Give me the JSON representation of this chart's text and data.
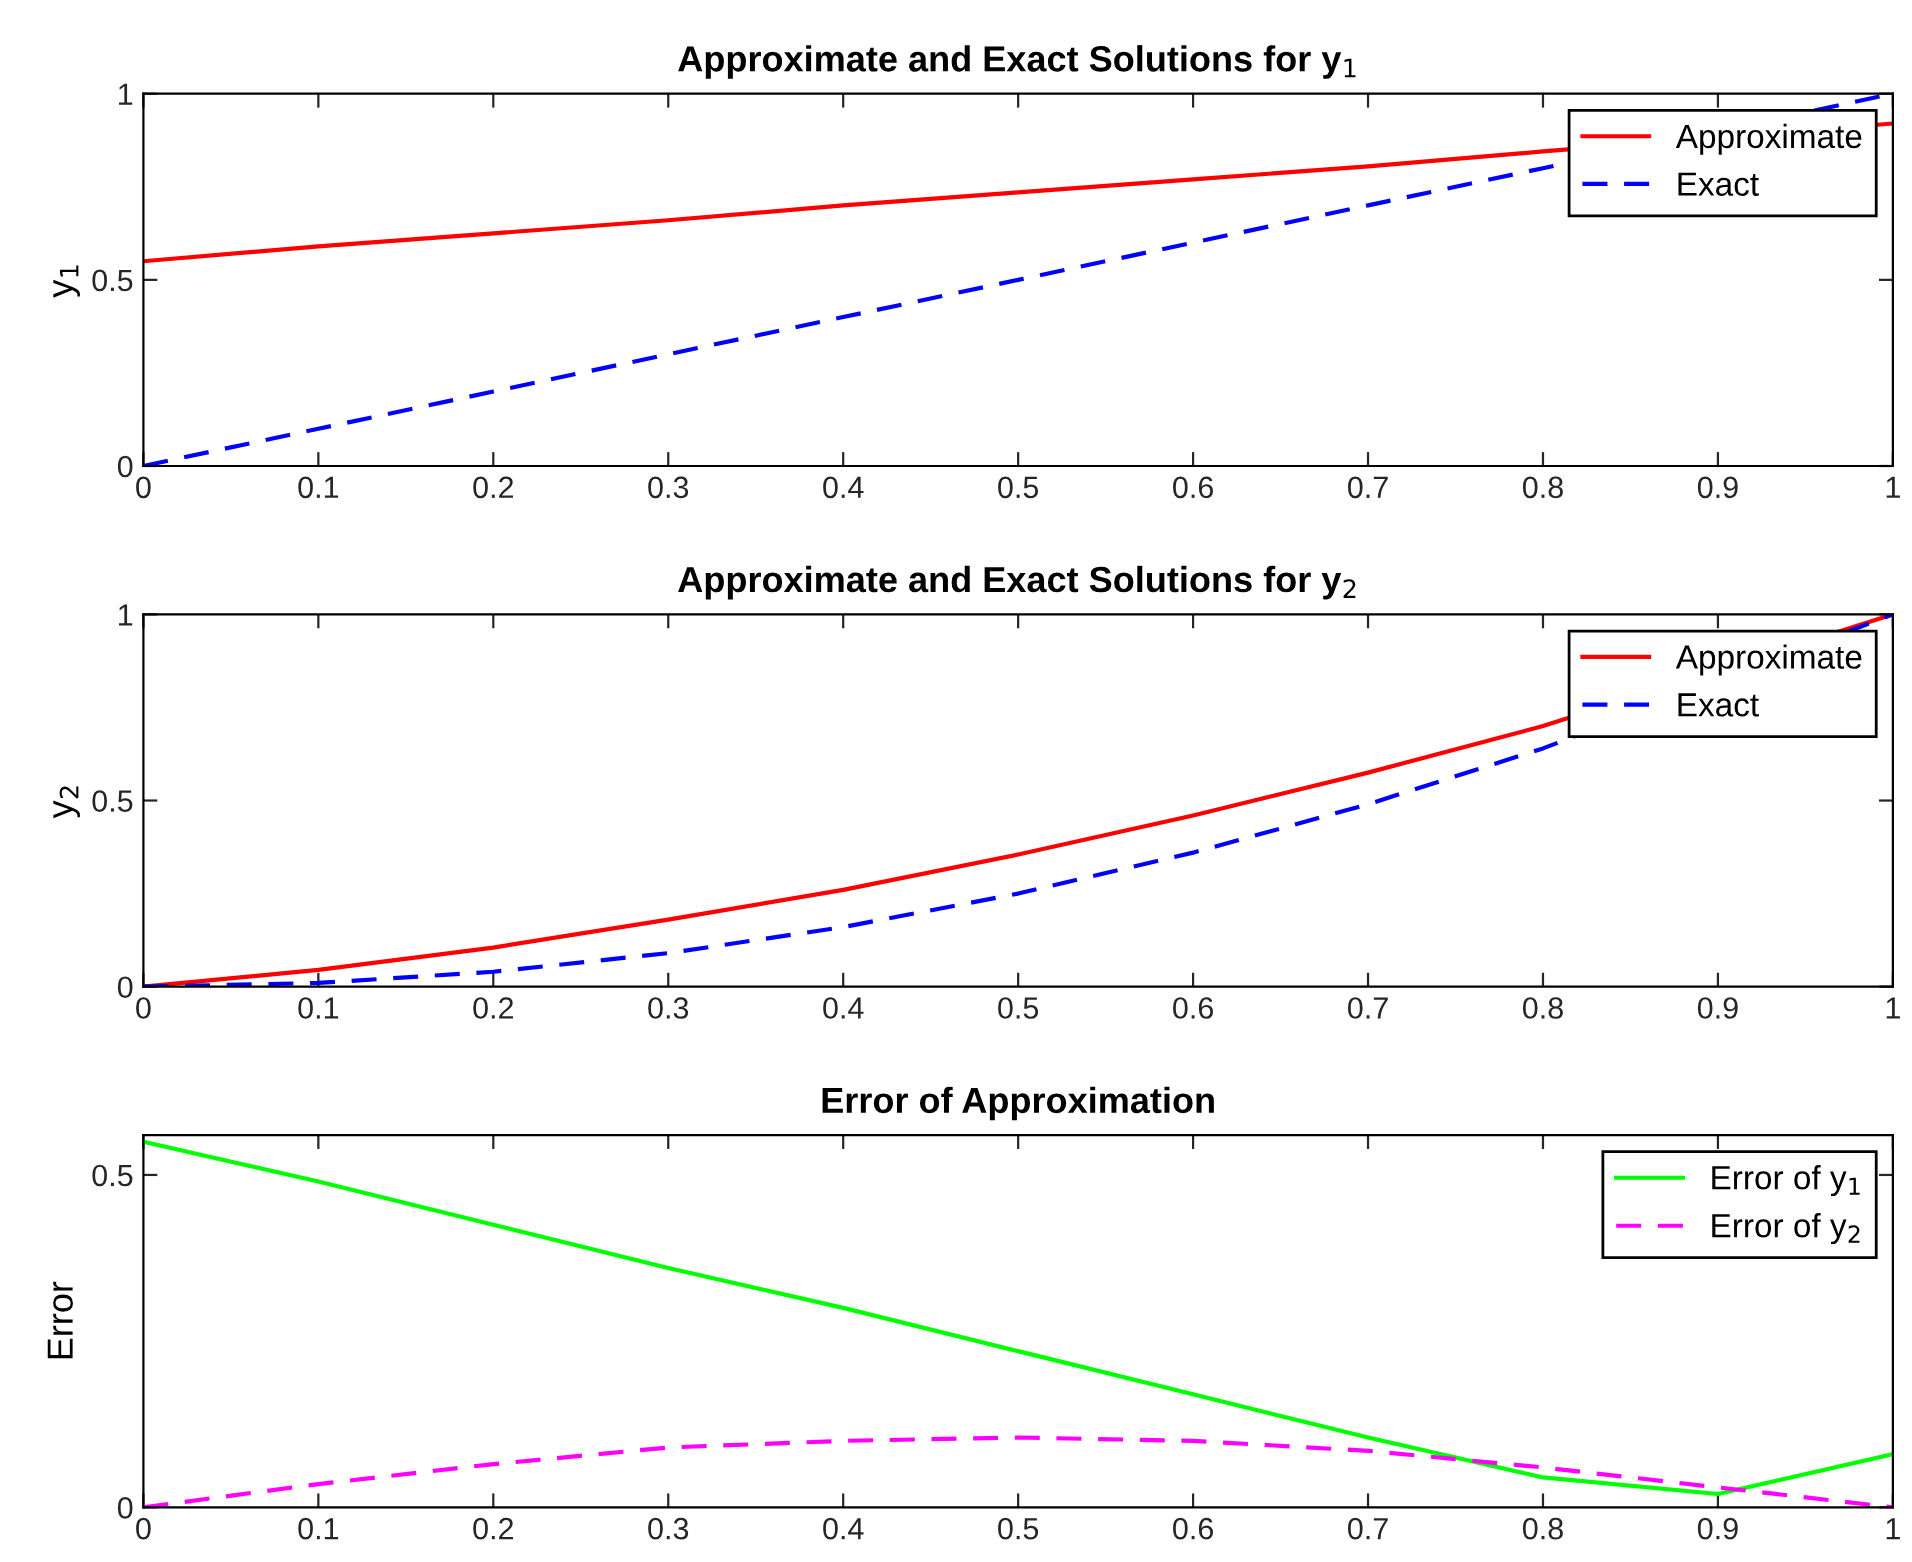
{
  "chart_data": [
    {
      "type": "line",
      "title": "Approximate and Exact Solutions for y$_{1}$",
      "ylabel": "y$_{1}$",
      "x": [
        0,
        0.1,
        0.2,
        0.3,
        0.4,
        0.5,
        0.6,
        0.7,
        0.8,
        1
      ],
      "series": [
        {
          "name": "Approximate",
          "color": "#ff0000",
          "line_style": "solid",
          "values": [
            0.55,
            0.59,
            0.625,
            0.66,
            0.7,
            0.735,
            0.77,
            0.805,
            0.845,
            0.92
          ]
        },
        {
          "name": "Exact",
          "color": "#0000ff",
          "line_style": "dashed",
          "values": [
            0,
            0.1,
            0.2,
            0.3,
            0.4,
            0.5,
            0.6,
            0.7,
            0.8,
            1
          ]
        }
      ],
      "xlim": [
        0,
        1
      ],
      "xticks": [
        0,
        0.1,
        0.2,
        0.3,
        0.4,
        0.5,
        0.6,
        0.7,
        0.8,
        0.9,
        1
      ],
      "ylim": [
        0,
        1
      ],
      "yticks": [
        0,
        0.5,
        1
      ],
      "legend": "top right",
      "grid": false
    },
    {
      "type": "line",
      "title": "Approximate and Exact Solutions for y$_{2}$",
      "ylabel": "y$_{2}$",
      "x": [
        0,
        0.1,
        0.2,
        0.3,
        0.4,
        0.5,
        0.6,
        0.7,
        0.8,
        1
      ],
      "series": [
        {
          "name": "Approximate",
          "color": "#ff0000",
          "line_style": "solid",
          "values": [
            0,
            0.045,
            0.105,
            0.18,
            0.26,
            0.355,
            0.46,
            0.575,
            0.7,
            1.0
          ]
        },
        {
          "name": "Exact",
          "color": "#0000ff",
          "line_style": "dashed",
          "values": [
            0,
            0.01,
            0.04,
            0.09,
            0.16,
            0.25,
            0.36,
            0.49,
            0.64,
            1
          ]
        }
      ],
      "xlim": [
        0,
        1
      ],
      "xticks": [
        0,
        0.1,
        0.2,
        0.3,
        0.4,
        0.5,
        0.6,
        0.7,
        0.8,
        0.9,
        1
      ],
      "ylim": [
        0,
        1
      ],
      "yticks": [
        0,
        0.5,
        1
      ],
      "legend": "top right",
      "grid": false
    },
    {
      "type": "line",
      "title": "Error of Approximation",
      "ylabel": "Error",
      "x": [
        0,
        0.1,
        0.2,
        0.3,
        0.4,
        0.5,
        0.6,
        0.7,
        0.8,
        0.9,
        1
      ],
      "series": [
        {
          "name": "Error of y$_{1}$",
          "color": "#00ff00",
          "line_style": "solid",
          "values": [
            0.55,
            0.49,
            0.425,
            0.36,
            0.3,
            0.235,
            0.17,
            0.105,
            0.045,
            0.02,
            0.08
          ]
        },
        {
          "name": "Error of y$_{2}$",
          "color": "#ff00ff",
          "line_style": "dashed",
          "values": [
            0,
            0.035,
            0.065,
            0.09,
            0.1,
            0.105,
            0.1,
            0.085,
            0.06,
            0.03,
            0
          ]
        }
      ],
      "xlim": [
        0,
        1
      ],
      "xticks": [
        0,
        0.1,
        0.2,
        0.3,
        0.4,
        0.5,
        0.6,
        0.7,
        0.8,
        0.9,
        1
      ],
      "ylim": [
        0,
        0.56
      ],
      "yticks": [
        0,
        0.5
      ],
      "legend": "top right",
      "grid": false
    }
  ]
}
